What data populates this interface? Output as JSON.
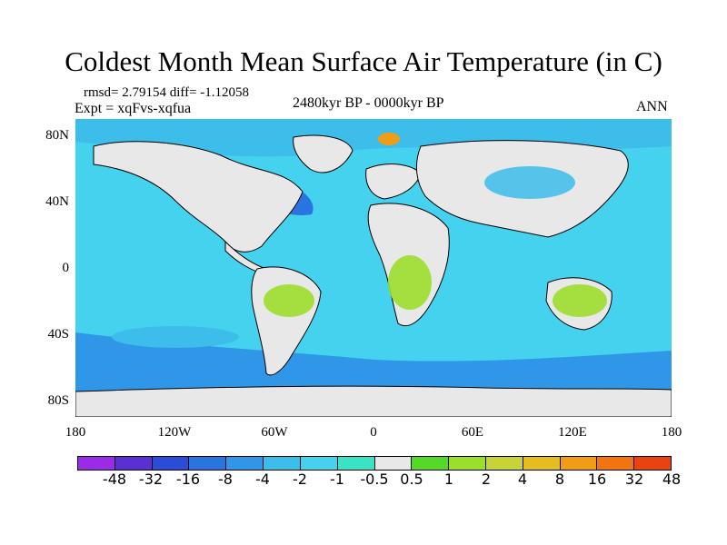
{
  "title": "Coldest Month Mean Surface Air Temperature (in C)",
  "stats": "rmsd= 2.79154 diff= -1.12058",
  "experiment": "Expt = xqFvs-xqfua",
  "period": "2480kyr BP - 0000kyr BP",
  "season": "ANN",
  "map": {
    "latitude_labels": [
      "80N",
      "40N",
      "0",
      "40S",
      "80S"
    ],
    "longitude_labels": [
      "180",
      "120W",
      "60W",
      "0",
      "60E",
      "120E",
      "180"
    ],
    "ocean_color": "#45d2ef",
    "land_color": "#e8e8e8",
    "coast_color": "#000000"
  },
  "colorbar": {
    "labels": [
      "-48",
      "-32",
      "-16",
      "-8",
      "-4",
      "-2",
      "-1",
      "-0.5",
      "0.5",
      "1",
      "2",
      "4",
      "8",
      "16",
      "32",
      "48"
    ],
    "colors": [
      "#9a2be6",
      "#5a30d2",
      "#2a4cd6",
      "#2a74e0",
      "#3097e8",
      "#3cbdea",
      "#46d2ee",
      "#38e4c4",
      "#e8e8e8",
      "#56d828",
      "#9cde2c",
      "#c8d436",
      "#e6bd1e",
      "#f19c16",
      "#f27410",
      "#ea4310"
    ]
  }
}
